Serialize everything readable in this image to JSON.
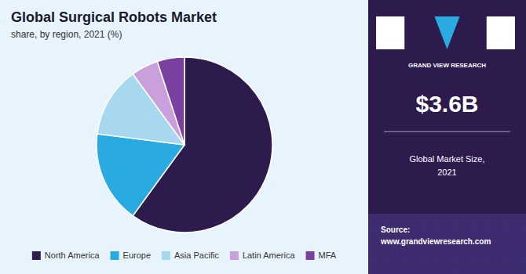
{
  "chart_data": {
    "type": "pie",
    "title": "Global Surgical Robots Market",
    "subtitle": "share, by region, 2021 (%)",
    "categories": [
      "North America",
      "Europe",
      "Asia Pacific",
      "Latin America",
      "MFA"
    ],
    "values": [
      60,
      17,
      13,
      5,
      5
    ],
    "colors": [
      "#2d1b4e",
      "#29abe2",
      "#a8d8f0",
      "#c9a0dc",
      "#7b3fa0"
    ],
    "legend": "bottom",
    "annotations": [
      "GRAND VIEW RESEARCH",
      "$3.6B",
      "Global Market Size,\n2021",
      "Source:\nwww.grandviewresearch.com"
    ]
  }
}
